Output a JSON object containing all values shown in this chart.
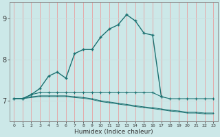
{
  "xlabel": "Humidex (Indice chaleur)",
  "bg_color": "#cce8e8",
  "grid_color_v": "#e8a0a0",
  "grid_color_h": "#c8dede",
  "line_color": "#1a7070",
  "x": [
    0,
    1,
    2,
    3,
    4,
    5,
    6,
    7,
    8,
    9,
    10,
    11,
    12,
    13,
    14,
    15,
    16,
    17,
    18,
    19,
    20,
    21,
    22,
    23
  ],
  "curve_main": [
    7.05,
    7.05,
    7.15,
    7.3,
    7.6,
    7.7,
    7.55,
    8.15,
    8.25,
    8.25,
    8.55,
    8.75,
    8.85,
    9.1,
    8.95,
    8.65,
    8.6,
    7.1,
    null,
    null,
    null,
    null,
    null,
    null
  ],
  "curve_flat": [
    7.05,
    7.05,
    7.15,
    7.2,
    7.2,
    7.2,
    7.2,
    7.2,
    7.2,
    7.2,
    7.2,
    7.2,
    7.2,
    7.2,
    7.2,
    7.2,
    7.2,
    7.1,
    7.05,
    7.05,
    7.05,
    7.05,
    7.05,
    7.05
  ],
  "curve_decline1": [
    7.05,
    7.05,
    7.1,
    7.12,
    7.12,
    7.12,
    7.12,
    7.1,
    7.08,
    7.05,
    7.0,
    6.97,
    6.94,
    6.91,
    6.88,
    6.85,
    6.83,
    6.8,
    6.77,
    6.75,
    6.72,
    6.72,
    6.7,
    6.7
  ],
  "curve_decline2": [
    7.05,
    7.05,
    7.08,
    7.1,
    7.1,
    7.1,
    7.1,
    7.08,
    7.06,
    7.03,
    6.98,
    6.95,
    6.92,
    6.89,
    6.86,
    6.83,
    6.81,
    6.78,
    6.75,
    6.73,
    6.7,
    6.7,
    6.68,
    6.68
  ],
  "ylim": [
    6.5,
    9.4
  ],
  "xlim_min": -0.5,
  "xlim_max": 23.5,
  "yticks": [
    7,
    8,
    9
  ],
  "xticks": [
    0,
    1,
    2,
    3,
    4,
    5,
    6,
    7,
    8,
    9,
    10,
    11,
    12,
    13,
    14,
    15,
    16,
    17,
    18,
    19,
    20,
    21,
    22,
    23
  ],
  "figsize": [
    3.2,
    2.0
  ],
  "dpi": 100
}
